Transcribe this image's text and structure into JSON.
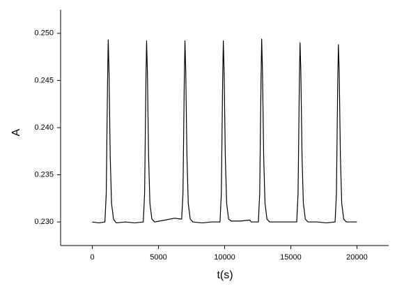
{
  "chart_data": {
    "type": "line",
    "xlabel": "t(s)",
    "ylabel": "A",
    "x": [
      0,
      500,
      950,
      1050,
      1150,
      1200,
      1260,
      1350,
      1450,
      1600,
      1800,
      2500,
      3200,
      3850,
      3950,
      4050,
      4100,
      4160,
      4250,
      4350,
      4500,
      4700,
      5500,
      6200,
      6750,
      6850,
      6950,
      7000,
      7060,
      7150,
      7250,
      7400,
      7600,
      8300,
      9000,
      9650,
      9750,
      9850,
      9900,
      9960,
      10050,
      10150,
      10300,
      10500,
      11200,
      11900,
      12000,
      12550,
      12650,
      12750,
      12800,
      12860,
      12950,
      13050,
      13200,
      13400,
      14200,
      15000,
      15450,
      15550,
      15650,
      15700,
      15760,
      15850,
      15950,
      16100,
      16300,
      17000,
      17700,
      18350,
      18450,
      18550,
      18600,
      18660,
      18750,
      18850,
      19000,
      19200,
      19600,
      20000
    ],
    "values": [
      0.23,
      0.2299,
      0.23,
      0.233,
      0.245,
      0.2493,
      0.246,
      0.237,
      0.232,
      0.2303,
      0.2299,
      0.23,
      0.2299,
      0.23,
      0.233,
      0.245,
      0.2492,
      0.246,
      0.237,
      0.232,
      0.2303,
      0.23,
      0.2302,
      0.2304,
      0.2303,
      0.233,
      0.245,
      0.2492,
      0.246,
      0.237,
      0.232,
      0.2303,
      0.23,
      0.2299,
      0.23,
      0.23,
      0.233,
      0.245,
      0.2492,
      0.246,
      0.237,
      0.232,
      0.2303,
      0.2301,
      0.2301,
      0.2302,
      0.23,
      0.23,
      0.233,
      0.245,
      0.2494,
      0.246,
      0.237,
      0.232,
      0.2303,
      0.23,
      0.23,
      0.23,
      0.23,
      0.233,
      0.245,
      0.249,
      0.246,
      0.237,
      0.232,
      0.2303,
      0.23,
      0.23,
      0.2299,
      0.23,
      0.233,
      0.245,
      0.2488,
      0.246,
      0.237,
      0.232,
      0.2303,
      0.23,
      0.23,
      0.23
    ],
    "color": "#000000",
    "xlim": [
      -2400,
      22400
    ],
    "xticks": [
      0,
      5000,
      10000,
      15000,
      20000
    ],
    "ylim": [
      0.2275,
      0.2525
    ],
    "yticks": [
      {
        "value": 0.23,
        "label": "0.230"
      },
      {
        "value": 0.235,
        "label": "0.235"
      },
      {
        "value": 0.24,
        "label": "0.240"
      },
      {
        "value": 0.245,
        "label": "0.245"
      },
      {
        "value": 0.25,
        "label": "0.250"
      }
    ]
  }
}
